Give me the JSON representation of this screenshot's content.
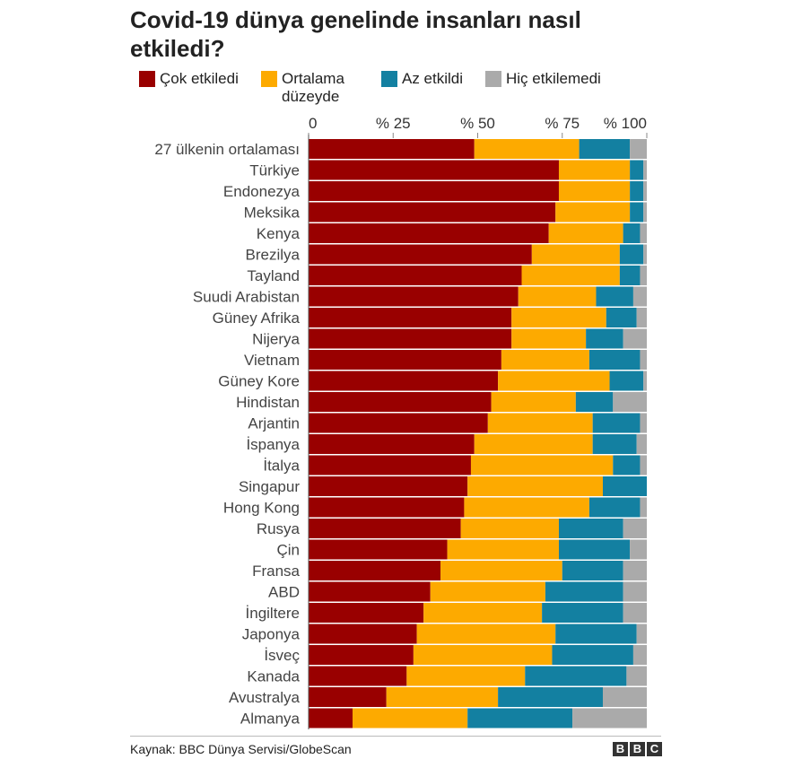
{
  "chart_data": {
    "type": "bar",
    "orientation": "horizontal",
    "stacked": true,
    "title": "Covid-19 dünya genelinde insanları nasıl etkiledi?",
    "xlim": [
      0,
      100
    ],
    "xticks": [
      {
        "value": 0,
        "label": "0"
      },
      {
        "value": 25,
        "label": "% 25"
      },
      {
        "value": 50,
        "label": "% 50"
      },
      {
        "value": 75,
        "label": "% 75"
      },
      {
        "value": 100,
        "label": "% 100"
      }
    ],
    "categories": [
      "27 ülkenin ortalaması",
      "Türkiye",
      "Endonezya",
      "Meksika",
      "Kenya",
      "Brezilya",
      "Tayland",
      "Suudi Arabistan",
      "Güney Afrika",
      "Nijerya",
      "Vietnam",
      "Güney Kore",
      "Hindistan",
      "Arjantin",
      "İspanya",
      "İtalya",
      "Singapur",
      "Hong Kong",
      "Rusya",
      "Çin",
      "Fransa",
      "ABD",
      "İngiltere",
      "Japonya",
      "İsveç",
      "Kanada",
      "Avustralya",
      "Almanya"
    ],
    "series": [
      {
        "name": "Çok etkiledi",
        "color": "#990000",
        "values": [
          49,
          74,
          74,
          73,
          71,
          66,
          63,
          62,
          60,
          60,
          57,
          56,
          54,
          53,
          49,
          48,
          47,
          46,
          45,
          41,
          39,
          36,
          34,
          32,
          31,
          29,
          23,
          13
        ]
      },
      {
        "name": "Ortalama düzeyde",
        "color": "#fdaa00",
        "values": [
          31,
          21,
          21,
          22,
          22,
          26,
          29,
          23,
          28,
          22,
          26,
          33,
          25,
          31,
          35,
          42,
          40,
          37,
          29,
          33,
          36,
          34,
          35,
          41,
          41,
          35,
          33,
          34
        ]
      },
      {
        "name": "Az etkildi",
        "color": "#1380a1",
        "values": [
          15,
          4,
          4,
          4,
          5,
          7,
          6,
          11,
          9,
          11,
          15,
          10,
          11,
          14,
          13,
          8,
          13,
          15,
          19,
          21,
          18,
          23,
          24,
          24,
          24,
          30,
          31,
          31
        ]
      },
      {
        "name": "Hiç etkilemedi",
        "color": "#aaaaaa",
        "values": [
          5,
          1,
          1,
          1,
          2,
          1,
          2,
          4,
          3,
          7,
          2,
          1,
          10,
          2,
          3,
          2,
          0,
          2,
          7,
          5,
          7,
          7,
          7,
          3,
          4,
          6,
          13,
          22
        ]
      }
    ],
    "legend": [
      {
        "label": "Çok etkiledi",
        "color": "#990000"
      },
      {
        "label": "Ortalama düzeyde",
        "color": "#fdaa00"
      },
      {
        "label": "Az etkildi",
        "color": "#1380a1"
      },
      {
        "label": "Hiç etkilemedi",
        "color": "#aaaaaa"
      }
    ]
  },
  "footer": {
    "source": "Kaynak: BBC Dünya Servisi/GlobeScan",
    "logo": [
      "B",
      "B",
      "C"
    ]
  }
}
